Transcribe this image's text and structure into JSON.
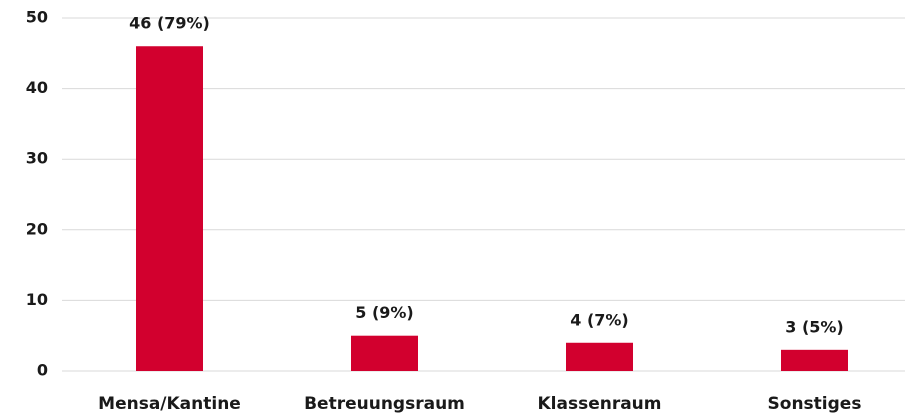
{
  "chart_data": {
    "type": "bar",
    "categories": [
      "Mensa/Kantine",
      "Betreuungsraum",
      "Klassenraum",
      "Sonstiges"
    ],
    "values": [
      46,
      5,
      4,
      3
    ],
    "value_labels": [
      "46 (79%)",
      "5 (9%)",
      "4 (7%)",
      "3 (5%)"
    ],
    "color": "#d2002e",
    "ylim": [
      0,
      50
    ],
    "yticks": [
      0,
      10,
      20,
      30,
      40,
      50
    ],
    "grid": true
  }
}
